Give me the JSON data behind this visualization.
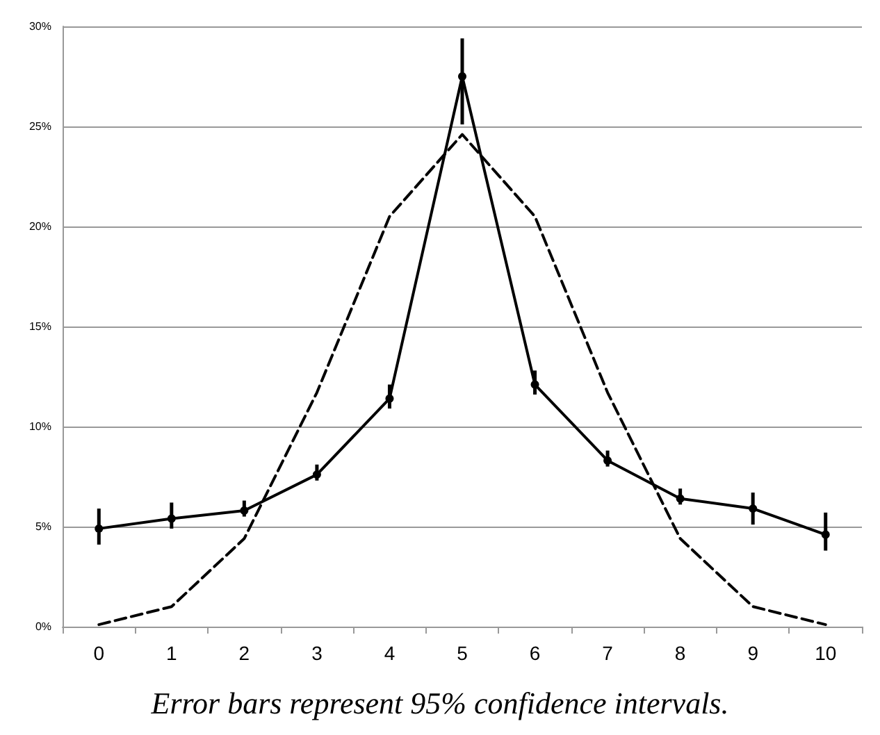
{
  "chart_data": {
    "type": "line",
    "categories": [
      "0",
      "1",
      "2",
      "3",
      "4",
      "5",
      "6",
      "7",
      "8",
      "9",
      "10"
    ],
    "series": [
      {
        "color": "#000000",
        "marker": "circle",
        "line_style": "solid",
        "values": [
          4.9,
          5.4,
          5.8,
          7.6,
          11.4,
          27.5,
          12.1,
          8.3,
          6.4,
          5.9,
          4.6
        ],
        "errors": [
          [
            4.1,
            5.9
          ],
          [
            4.9,
            6.2
          ],
          [
            5.5,
            6.3
          ],
          [
            7.3,
            8.1
          ],
          [
            10.9,
            12.1
          ],
          [
            25.1,
            29.4
          ],
          [
            11.6,
            12.8
          ],
          [
            8.0,
            8.8
          ],
          [
            6.1,
            6.9
          ],
          [
            5.1,
            6.7
          ],
          [
            3.8,
            5.7
          ]
        ]
      },
      {
        "color": "#000000",
        "marker": "none",
        "line_style": "dashed",
        "values": [
          0.1,
          1.0,
          4.4,
          11.7,
          20.5,
          24.6,
          20.5,
          11.7,
          4.4,
          1.0,
          0.1
        ]
      }
    ],
    "ylim": [
      0,
      30
    ],
    "yticks": [
      {
        "value": 0,
        "label": "0%"
      },
      {
        "value": 5,
        "label": "5%"
      },
      {
        "value": 10,
        "label": "10%"
      },
      {
        "value": 15,
        "label": "15%"
      },
      {
        "value": 20,
        "label": "20%"
      },
      {
        "value": 25,
        "label": "25%"
      },
      {
        "value": 30,
        "label": "30%"
      }
    ],
    "grid": "y",
    "annotations": [
      "Error bars represent 95% confidence intervals."
    ]
  }
}
